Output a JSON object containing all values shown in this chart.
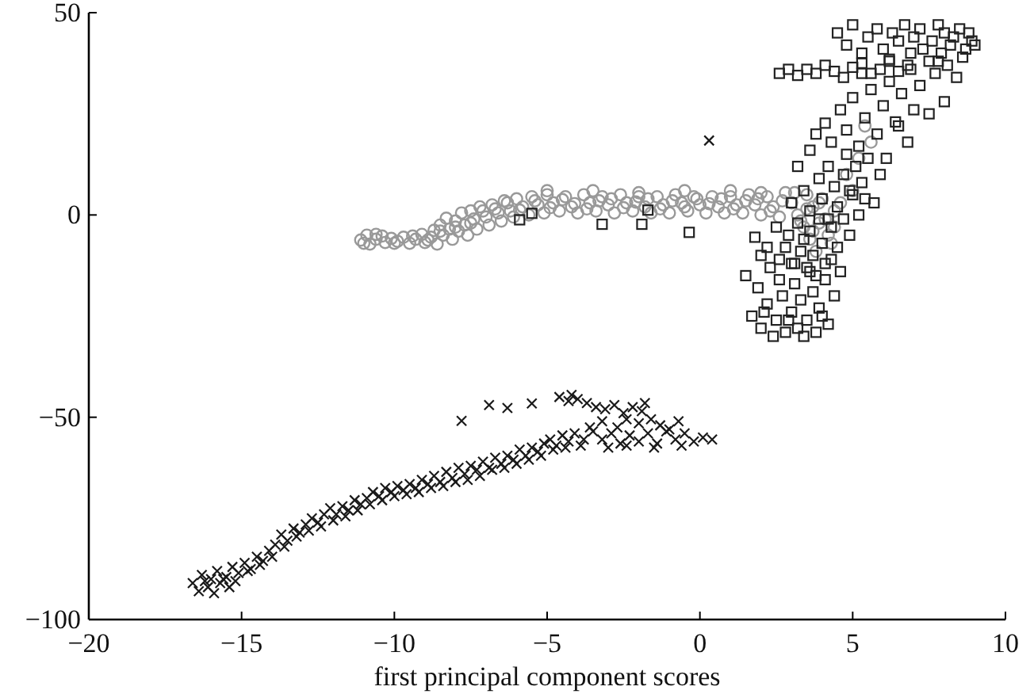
{
  "chart_data": {
    "type": "scatter",
    "xlabel": "first principal component scores",
    "xlim": [
      -20,
      10
    ],
    "ylim": [
      -100,
      50
    ],
    "xticks": [
      -20,
      -15,
      -10,
      -5,
      0,
      5,
      10
    ],
    "yticks": [
      -100,
      -50,
      0,
      50
    ],
    "series": [
      {
        "color": "#999999",
        "marker": "circle",
        "x": [
          -11.1,
          -10.9,
          -10.8,
          -10.6,
          -10.4,
          -10.3,
          -10.1,
          -9.9,
          -9.7,
          -9.5,
          -9.3,
          -9.1,
          -9.0,
          -8.8,
          -8.7,
          -8.6,
          -8.5,
          -8.4,
          -8.3,
          -8.2,
          -8.1,
          -8.0,
          -7.9,
          -7.8,
          -7.7,
          -7.6,
          -7.5,
          -7.4,
          -7.3,
          -7.2,
          -7.0,
          -6.9,
          -6.8,
          -6.6,
          -6.5,
          -6.4,
          -6.2,
          -6.1,
          -6.0,
          -5.8,
          -5.6,
          -5.5,
          -5.3,
          -5.1,
          -5.0,
          -4.8,
          -4.6,
          -4.4,
          -4.2,
          -4.0,
          -3.8,
          -3.6,
          -3.4,
          -3.2,
          -3.0,
          -2.8,
          -2.6,
          -2.4,
          -2.2,
          -2.0,
          -1.8,
          -1.6,
          -1.4,
          -1.2,
          -1.0,
          -0.8,
          -0.6,
          -0.4,
          -0.2,
          0.0,
          0.2,
          0.4,
          0.6,
          0.8,
          1.0,
          1.2,
          1.4,
          1.6,
          1.8,
          2.0,
          2.2,
          2.4,
          2.6,
          2.8,
          3.0,
          3.2,
          3.4,
          3.5,
          3.6,
          3.7,
          3.8,
          3.9,
          4.0,
          4.2,
          4.4,
          4.8,
          5.2,
          5.6,
          -6.7,
          -6.3,
          -5.9,
          -5.4,
          -4.9,
          -4.5,
          -4.1,
          -3.7,
          -3.3,
          -2.9,
          -2.5,
          -2.1,
          -1.7,
          -1.3,
          -0.9,
          -0.5,
          -0.1,
          0.3,
          0.7,
          1.1,
          1.5,
          1.9,
          2.3,
          2.7,
          3.1,
          3.3,
          3.5,
          3.7,
          3.9,
          4.1,
          4.3,
          4.6,
          2.0,
          1.0,
          -0.5,
          -2.0,
          -3.5,
          -5.0,
          -7.1,
          -7.5,
          -8.0,
          -8.5,
          -8.9,
          -9.4,
          -10.0,
          -10.6,
          -11.0,
          5.0,
          4.4,
          5.4
        ],
        "values": [
          -6.2,
          -5.0,
          -7.2,
          -6.0,
          -5.2,
          -6.8,
          -5.8,
          -6.5,
          -5.5,
          -7.0,
          -6.0,
          -4.8,
          -6.8,
          -5.5,
          -3.8,
          -7.2,
          -2.5,
          -5.0,
          -0.8,
          -3.5,
          -6.0,
          -1.5,
          -4.0,
          0.5,
          -2.5,
          -5.0,
          1.0,
          -1.0,
          -3.5,
          2.0,
          -0.5,
          -2.5,
          2.5,
          0.5,
          -1.5,
          3.5,
          1.0,
          -0.5,
          4.0,
          2.0,
          0.0,
          4.5,
          2.5,
          0.5,
          5.0,
          3.0,
          1.0,
          4.5,
          2.0,
          0.5,
          5.0,
          3.0,
          1.0,
          4.5,
          2.5,
          0.5,
          5.0,
          3.0,
          1.0,
          4.5,
          2.0,
          0.5,
          4.5,
          2.5,
          0.5,
          5.0,
          3.0,
          1.0,
          4.5,
          2.5,
          0.5,
          4.5,
          2.0,
          0.5,
          4.5,
          2.5,
          0.5,
          5.0,
          2.5,
          0.0,
          4.5,
          2.0,
          -0.5,
          5.5,
          3.0,
          0.0,
          -3.0,
          5.0,
          -6.0,
          2.0,
          -9.0,
          -2.0,
          4.0,
          -5.0,
          1.0,
          10,
          14,
          18,
          1.5,
          3.0,
          1.2,
          3.5,
          1.8,
          3.8,
          2.8,
          1.5,
          3.5,
          4.0,
          1.8,
          3.2,
          4.0,
          1.5,
          3.5,
          2.0,
          4.0,
          2.8,
          4.0,
          1.5,
          3.5,
          4.0,
          1.0,
          3.5,
          5.5,
          -1.5,
          1.5,
          -4.0,
          3.0,
          -1.0,
          -7.0,
          3.0,
          5.5,
          6.0,
          6.0,
          5.5,
          6.0,
          6.0,
          1.0,
          -2.0,
          -3.0,
          -4.0,
          -6.2,
          -5.2,
          -7.0,
          -4.8,
          -7.0,
          6.0,
          -3.0,
          22
        ]
      },
      {
        "color": "#222222",
        "marker": "square",
        "x": [
          1.7,
          2.0,
          2.2,
          2.4,
          2.5,
          2.7,
          2.8,
          3.0,
          3.1,
          3.2,
          3.3,
          3.5,
          3.6,
          3.7,
          3.8,
          3.9,
          4.1,
          4.2,
          4.4,
          1.9,
          2.3,
          2.6,
          2.2,
          2.6,
          2.9,
          3.0,
          3.2,
          3.3,
          3.5,
          3.6,
          3.7,
          3.9,
          4.0,
          4.1,
          4.3,
          4.5,
          4.7,
          4.9,
          2.5,
          2.0,
          3.0,
          3.4,
          3.6,
          3.9,
          4.0,
          4.2,
          4.4,
          4.5,
          4.7,
          4.8,
          5.0,
          5.1,
          5.3,
          5.5,
          5.7,
          5.9,
          3.2,
          3.6,
          3.8,
          4.1,
          4.3,
          4.6,
          4.8,
          5.0,
          5.2,
          5.4,
          5.6,
          5.8,
          6.0,
          6.2,
          6.4,
          6.6,
          6.8,
          7.0,
          7.2,
          7.5,
          8.0,
          5.3,
          2.6,
          2.9,
          3.2,
          3.5,
          3.8,
          4.1,
          4.4,
          4.7,
          5.0,
          5.3,
          5.6,
          5.9,
          6.2,
          6.5,
          6.8,
          4.5,
          4.8,
          5.0,
          5.3,
          5.5,
          5.8,
          6.0,
          6.2,
          6.3,
          6.5,
          6.7,
          6.9,
          7.0,
          7.2,
          7.3,
          7.5,
          7.6,
          7.8,
          7.9,
          8.0,
          8.2,
          8.3,
          8.5,
          8.6,
          8.7,
          8.9,
          9.0,
          8.1,
          7.7,
          8.4,
          -5.9,
          -5.5,
          -3.2,
          -1.9,
          -1.7,
          -0.35,
          1.8,
          1.5,
          2.1,
          2.9,
          3.4,
          4.0,
          3.1,
          3.8,
          4.3,
          2.8,
          4.6,
          3.4,
          4.2,
          5.2,
          4.9,
          5.4,
          6.1,
          6.5,
          6.9,
          7.8,
          8.8
        ],
        "values": [
          -25,
          -28,
          -22,
          -30,
          -26,
          -20,
          -29,
          -24,
          -17,
          -28,
          -21,
          -26,
          -14,
          -19,
          -29,
          -23,
          -16,
          -27,
          -20,
          -18,
          -13,
          -16,
          -8,
          -11,
          -5,
          -12,
          -2,
          -9,
          -13,
          -4,
          -10,
          -1,
          -7,
          -12,
          -3,
          -8,
          -1,
          -5,
          -3,
          -10,
          3,
          6,
          1,
          9,
          4,
          12,
          7,
          2,
          10,
          15,
          5,
          12,
          8,
          14,
          3,
          10,
          12,
          16,
          20,
          22.7,
          18,
          26,
          21,
          29,
          17,
          24,
          31,
          20,
          27,
          33,
          23,
          30,
          18,
          26,
          32,
          25,
          28,
          35,
          35,
          36,
          34.5,
          36,
          35,
          37,
          35.5,
          34,
          36.5,
          37.5,
          35,
          36,
          38,
          35.5,
          37,
          45,
          42,
          47,
          40,
          44,
          46,
          41,
          38.5,
          45,
          43,
          47,
          40,
          44,
          46,
          41,
          38,
          43,
          47,
          40,
          45,
          42,
          44,
          46,
          39,
          41,
          43,
          42,
          37,
          35,
          34,
          -1.2,
          0.4,
          -2.3,
          -2.3,
          1.2,
          -4.3,
          -5.5,
          -15,
          -24,
          -26,
          -30,
          -25,
          -12,
          -15,
          -11,
          -8,
          -14,
          -6,
          -1,
          0,
          6,
          4,
          14,
          22,
          36,
          38,
          45
        ]
      },
      {
        "color": "#1a1a1a",
        "marker": "cross",
        "x": [
          -16.6,
          -16.4,
          -16.3,
          -16.1,
          -16.0,
          -15.9,
          -15.8,
          -15.7,
          -15.5,
          -15.4,
          -15.3,
          -15.1,
          -14.9,
          -14.7,
          -14.5,
          -14.3,
          -14.1,
          -13.9,
          -13.7,
          -13.5,
          -13.3,
          -13.1,
          -12.9,
          -12.7,
          -12.5,
          -12.3,
          -12.1,
          -11.9,
          -11.7,
          -11.5,
          -11.3,
          -11.1,
          -10.9,
          -10.7,
          -10.5,
          -10.3,
          -10.1,
          -9.9,
          -9.7,
          -9.5,
          -9.3,
          -9.1,
          -8.9,
          -8.7,
          -8.5,
          -8.3,
          -8.1,
          -7.9,
          -7.7,
          -7.5,
          -7.3,
          -7.1,
          -6.9,
          -6.7,
          -6.5,
          -6.3,
          -6.1,
          -5.9,
          -5.7,
          -5.5,
          -5.3,
          -5.1,
          -4.9,
          -4.7,
          -4.5,
          -4.3,
          -4.1,
          -3.8,
          -3.5,
          -3.2,
          -2.9,
          -2.6,
          -2.3,
          -2.0,
          -1.7,
          -1.4,
          -1.1,
          -0.8,
          -0.5,
          -0.2,
          0.1,
          0.4,
          -4.6,
          -4.3,
          -4.0,
          -3.7,
          -3.4,
          -3.1,
          -2.8,
          -2.5,
          -2.2,
          -1.9,
          -1.6,
          -2.0,
          -2.7,
          -3.2,
          -1.3,
          -1.0,
          -7.8,
          -6.9,
          -6.3,
          -5.5,
          0.3,
          -16.2,
          -15.6,
          -15.2,
          -14.8,
          -14.4,
          -14.0,
          -13.6,
          -13.2,
          -12.8,
          -12.4,
          -12.0,
          -11.6,
          -11.2,
          -10.8,
          -10.4,
          -10.0,
          -9.6,
          -9.2,
          -8.8,
          -8.4,
          -8.0,
          -7.6,
          -7.2,
          -6.8,
          -6.4,
          -6.0,
          -5.6,
          -5.2,
          -4.8,
          -4.4,
          -3.9,
          -3.0,
          -2.4,
          -1.5,
          -0.6,
          -3.6,
          -2.4,
          -1.8,
          -0.7,
          -4.2
        ],
        "values": [
          -91,
          -93,
          -89,
          -92,
          -90,
          -93.5,
          -88,
          -91,
          -89.5,
          -92,
          -87,
          -88.5,
          -86,
          -87.5,
          -84.5,
          -85.5,
          -83,
          -81.5,
          -79,
          -80.5,
          -77.5,
          -78.5,
          -76.5,
          -75,
          -76,
          -74,
          -72.5,
          -74,
          -72,
          -73,
          -70.5,
          -71.5,
          -70,
          -68.5,
          -69.5,
          -67.5,
          -68.5,
          -67,
          -68,
          -66.5,
          -67.5,
          -65.5,
          -66.5,
          -64.5,
          -66,
          -63.5,
          -65,
          -62.5,
          -64,
          -62,
          -63,
          -61,
          -62.5,
          -60,
          -61.5,
          -59.5,
          -60.5,
          -58,
          -59.5,
          -57.5,
          -58.5,
          -56.5,
          -55.5,
          -57,
          -54.5,
          -56,
          -54,
          -55.5,
          -53.5,
          -55.5,
          -54,
          -56.5,
          -54.5,
          -56,
          -54,
          -56.5,
          -53.5,
          -55.5,
          -54,
          -56,
          -55,
          -55.5,
          -45,
          -46,
          -45.5,
          -46.5,
          -47.5,
          -48,
          -47,
          -49,
          -47.5,
          -48.5,
          -50.5,
          -51.5,
          -52.5,
          -51,
          -52,
          -53,
          -50.9,
          -47,
          -47.7,
          -46.6,
          18.4,
          -90.5,
          -90,
          -90.5,
          -88,
          -86.5,
          -84.5,
          -82,
          -79.5,
          -78,
          -77,
          -75.5,
          -74.5,
          -73,
          -71.5,
          -70.5,
          -69.5,
          -69,
          -68.5,
          -67.5,
          -67,
          -66,
          -65.5,
          -64.5,
          -63,
          -62.5,
          -61.5,
          -60.5,
          -59.5,
          -58,
          -57.5,
          -57,
          -57.5,
          -57,
          -57.5,
          -57,
          -52.5,
          -50.5,
          -46.5,
          -51,
          -44.5
        ]
      }
    ]
  }
}
